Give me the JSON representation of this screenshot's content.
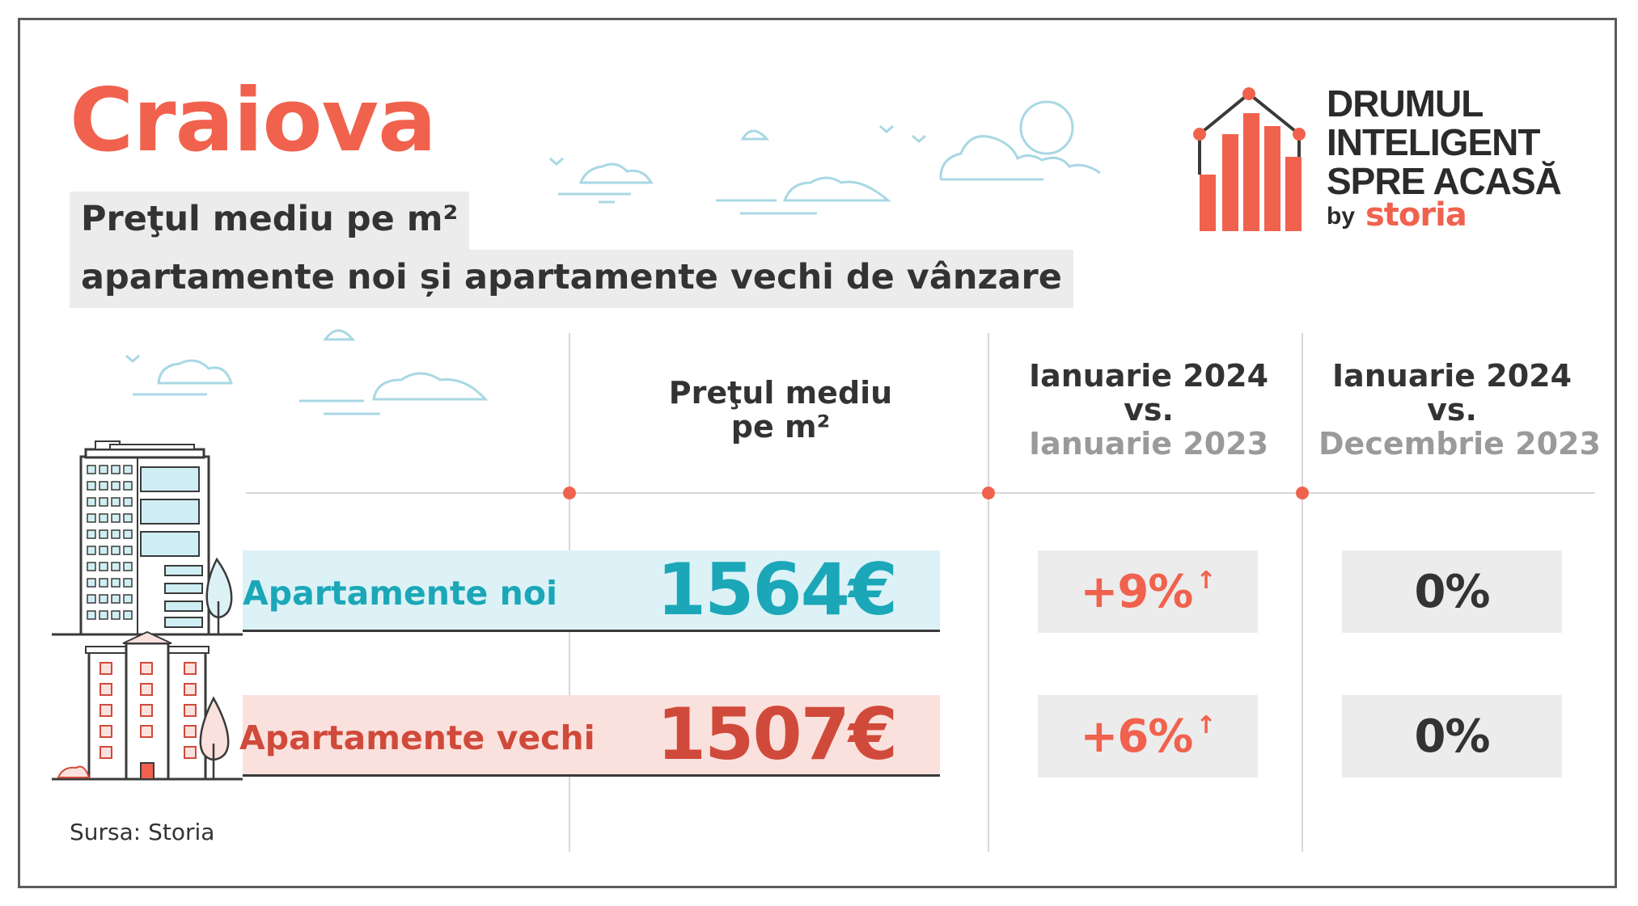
{
  "header": {
    "city": "Craiova",
    "subtitle_line1": "Preţul mediu pe m²",
    "subtitle_line2": "apartamente noi și apartamente vechi de vânzare"
  },
  "brand": {
    "line1": "DRUMUL",
    "line2": "INTELIGENT",
    "line3": "SPRE ACASĂ",
    "by": "by",
    "storia": "storia"
  },
  "columns": {
    "price": {
      "line1": "Preţul mediu",
      "line2": "pe m²"
    },
    "yoy": {
      "line1": "Ianuarie 2024",
      "line2": "vs.",
      "line3": "Ianuarie 2023"
    },
    "mom": {
      "line1": "Ianuarie 2024",
      "line2": "vs.",
      "line3": "Decembrie 2023"
    }
  },
  "rows": [
    {
      "label": "Apartamente noi",
      "price": "1564€",
      "yoy": "+9%",
      "yoy_arrow": "↑",
      "mom": "0%"
    },
    {
      "label": "Apartamente vechi",
      "price": "1507€",
      "yoy": "+6%",
      "yoy_arrow": "↑",
      "mom": "0%"
    }
  ],
  "footer": {
    "source": "Sursa: Storia"
  },
  "colors": {
    "accent": "#f0624d",
    "new_teal": "#1ba7b8",
    "old_red": "#d04a3b",
    "new_band": "#dcf2f6",
    "old_band": "#fbe1dd",
    "pill_grey": "#ececec",
    "cloud_blue": "#a8d8e4"
  },
  "icons": [
    "cloud-icon",
    "bird-icon",
    "new-building-illustration",
    "old-building-illustration",
    "tree-icon",
    "storia-logo-icon"
  ]
}
